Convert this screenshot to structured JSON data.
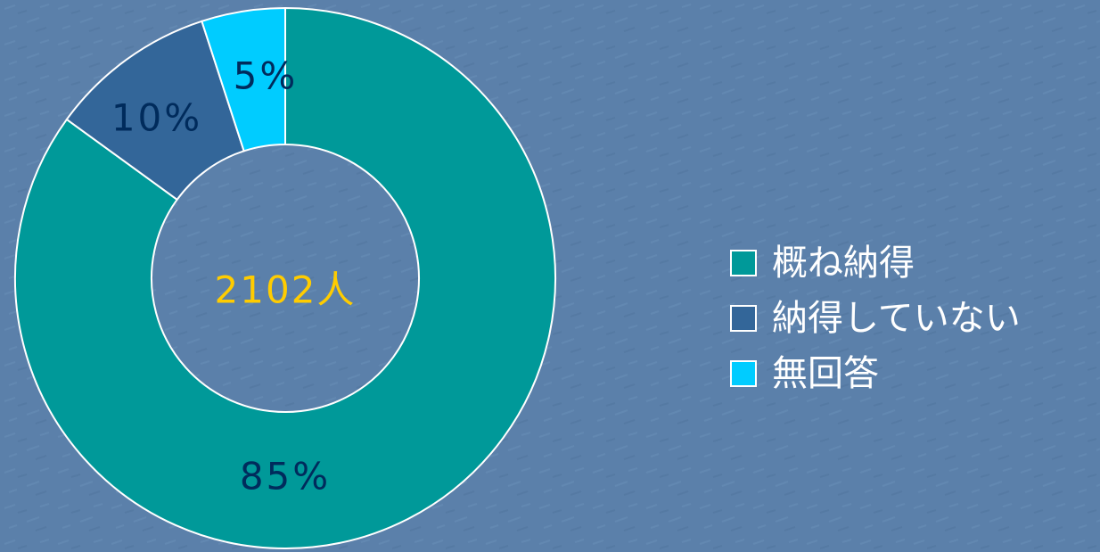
{
  "chart_data": {
    "type": "donut",
    "annotation": "2102人",
    "categories": [
      "概ね納得",
      "納得していない",
      "無回答"
    ],
    "values": [
      85,
      10,
      5
    ],
    "value_labels": [
      "85%",
      "10%",
      "5%"
    ],
    "colors": [
      "#009999",
      "#336699",
      "#00ccff"
    ],
    "legend": "right"
  }
}
